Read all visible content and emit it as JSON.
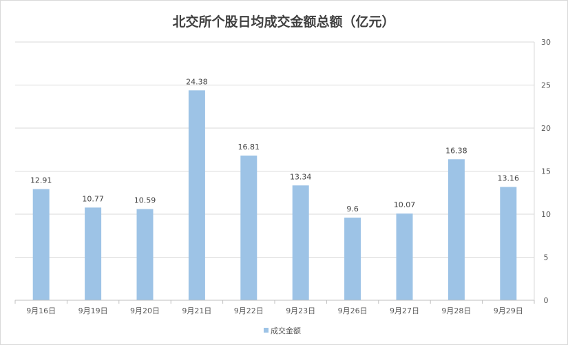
{
  "chart_data": {
    "type": "bar",
    "title": "北交所个股日均成交金额总额（亿元）",
    "categories": [
      "9月16日",
      "9月19日",
      "9月20日",
      "9月21日",
      "9月22日",
      "9月23日",
      "9月26日",
      "9月27日",
      "9月28日",
      "9月29日"
    ],
    "series": [
      {
        "name": "成交金额",
        "values": [
          12.91,
          10.77,
          10.59,
          24.38,
          16.81,
          13.34,
          9.6,
          10.07,
          16.38,
          13.16
        ],
        "labels": [
          "12.91",
          "10.77",
          "10.59",
          "24.38",
          "16.81",
          "13.34",
          "9.6",
          "10.07",
          "16.38",
          "13.16"
        ],
        "color": "#9dc3e6"
      }
    ],
    "ylim": [
      0,
      30
    ],
    "yticks": [
      "0",
      "5",
      "10",
      "15",
      "20",
      "25",
      "30"
    ],
    "yaxis_position": "right",
    "grid": true,
    "legend": "bottom"
  }
}
